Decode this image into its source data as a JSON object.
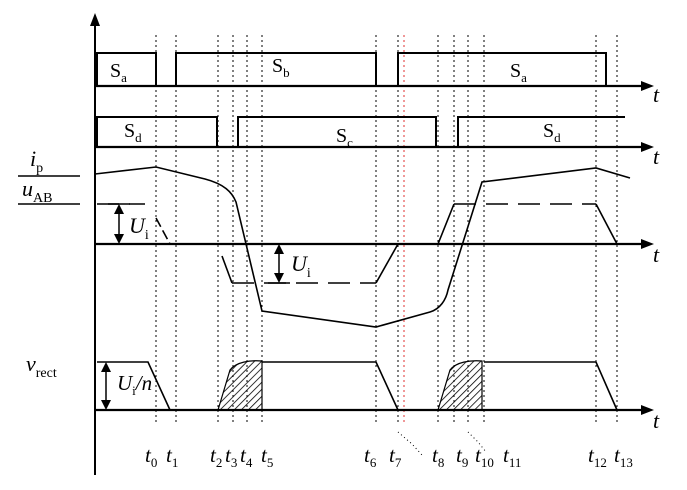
{
  "signals": {
    "gate_a_label": "S",
    "gate_a_sub": "a",
    "gate_b_label": "S",
    "gate_b_sub": "b",
    "gate_c_label": "S",
    "gate_c_sub": "c",
    "gate_d_label": "S",
    "gate_d_sub": "d",
    "ip_label": "i",
    "ip_sub": "p",
    "uab_label": "u",
    "uab_sub": "AB",
    "ui_label": "U",
    "ui_sub": "i",
    "ui_neg_label": "U",
    "ui_neg_sub": "i",
    "vrect_label": "v",
    "vrect_sub": "rect",
    "vrect_amp_label": "U",
    "vrect_amp_sub": "i",
    "vrect_amp_suffix": "/n"
  },
  "axes": {
    "t_label": "t"
  },
  "time_ticks": [
    {
      "main": "t",
      "sub": "0"
    },
    {
      "main": "t",
      "sub": "1"
    },
    {
      "main": "t",
      "sub": "2"
    },
    {
      "main": "t",
      "sub": "3"
    },
    {
      "main": "t",
      "sub": "4"
    },
    {
      "main": "t",
      "sub": "5"
    },
    {
      "main": "t",
      "sub": "6"
    },
    {
      "main": "t",
      "sub": "7"
    },
    {
      "main": "t",
      "sub": "8"
    },
    {
      "main": "t",
      "sub": "9"
    },
    {
      "main": "t",
      "sub": "10"
    },
    {
      "main": "t",
      "sub": "11"
    },
    {
      "main": "t",
      "sub": "12"
    },
    {
      "main": "t",
      "sub": "13"
    }
  ],
  "colors": {
    "stroke": "#000000",
    "dotted_red": "#e03030"
  }
}
